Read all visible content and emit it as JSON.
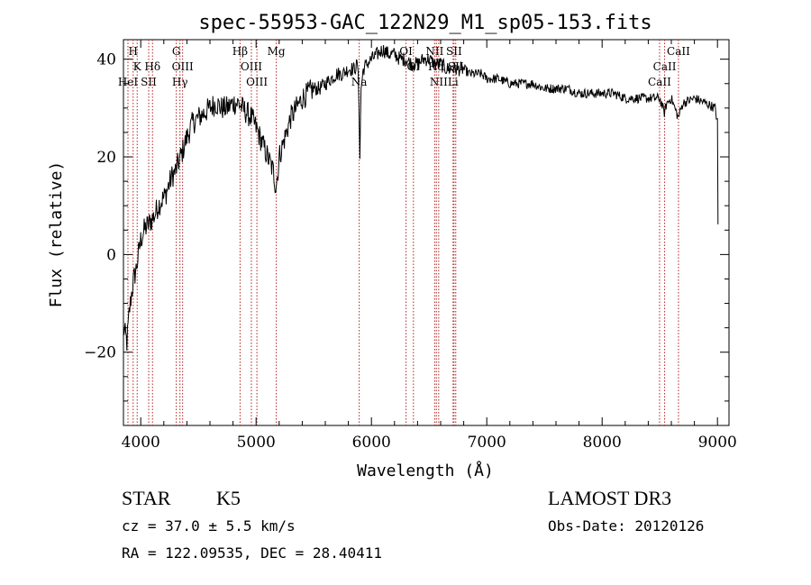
{
  "chart_data": {
    "type": "line",
    "title": "spec-55953-GAC_122N29_M1_sp05-153.fits",
    "xlabel": "Wavelength (Å)",
    "ylabel": "Flux (relative)",
    "xlim": [
      3850,
      9100
    ],
    "ylim": [
      -35,
      44
    ],
    "x_ticks": [
      4000,
      5000,
      6000,
      7000,
      8000,
      9000
    ],
    "y_ticks": [
      -20,
      0,
      20,
      40
    ],
    "x_tick_labels": [
      "4000",
      "5000",
      "6000",
      "7000",
      "8000",
      "9000"
    ],
    "y_tick_labels": [
      "−20",
      "0",
      "20",
      "40"
    ],
    "line_color": "#000000",
    "marker_color": "#b22222",
    "series": [
      {
        "name": "spectrum",
        "x": [
          3850,
          3880,
          3900,
          3920,
          3940,
          3960,
          3980,
          4000,
          4030,
          4060,
          4090,
          4120,
          4150,
          4180,
          4210,
          4240,
          4270,
          4300,
          4330,
          4360,
          4400,
          4450,
          4500,
          4550,
          4600,
          4650,
          4700,
          4750,
          4800,
          4850,
          4880,
          4920,
          4960,
          5000,
          5050,
          5100,
          5150,
          5170,
          5185,
          5200,
          5250,
          5300,
          5350,
          5400,
          5450,
          5500,
          5550,
          5600,
          5650,
          5700,
          5750,
          5800,
          5850,
          5880,
          5890,
          5900,
          5910,
          5930,
          5960,
          6000,
          6050,
          6100,
          6150,
          6200,
          6250,
          6300,
          6350,
          6400,
          6450,
          6500,
          6550,
          6600,
          6650,
          6700,
          6750,
          6800,
          6850,
          6900,
          6950,
          7000,
          7100,
          7200,
          7300,
          7400,
          7500,
          7600,
          7700,
          7800,
          7900,
          8000,
          8100,
          8200,
          8300,
          8400,
          8500,
          8540,
          8560,
          8600,
          8660,
          8700,
          8800,
          8900,
          8980,
          9000,
          9005
        ],
        "y": [
          -15,
          -18,
          -12,
          -8,
          -5,
          -3,
          0,
          3,
          5,
          6,
          7,
          8,
          10,
          11,
          12,
          14,
          16,
          17,
          19,
          21,
          24,
          27,
          28,
          29,
          30,
          31,
          30,
          30,
          31,
          31,
          30,
          29,
          28,
          26,
          23,
          20,
          17,
          14,
          16,
          20,
          24,
          28,
          30,
          32,
          33,
          34,
          34,
          35,
          36,
          37,
          37,
          38,
          38,
          39,
          33,
          20,
          34,
          38,
          39,
          40,
          41,
          42,
          41,
          41,
          40,
          40,
          39,
          39,
          40,
          40,
          39,
          39,
          38,
          38,
          38,
          38,
          37,
          37,
          37,
          36,
          36,
          35,
          35,
          35,
          34,
          34,
          34,
          33,
          33,
          33,
          33,
          32,
          32,
          32,
          32,
          29,
          31,
          32,
          28,
          31,
          32,
          31,
          30,
          27,
          6
        ]
      }
    ],
    "line_markers": [
      {
        "label": "H",
        "x": 3934,
        "row": 0
      },
      {
        "label": "K",
        "x": 3969,
        "row": 1
      },
      {
        "label": "HeI",
        "x": 3889,
        "row": 2
      },
      {
        "label": "SII",
        "x": 4069,
        "row": 2
      },
      {
        "label": "Hδ",
        "x": 4102,
        "row": 1
      },
      {
        "label": "G",
        "x": 4308,
        "row": 0
      },
      {
        "label": "OIII",
        "x": 4363,
        "row": 1
      },
      {
        "label": "Hγ",
        "x": 4340,
        "row": 2
      },
      {
        "label": "Hβ",
        "x": 4861,
        "row": 0
      },
      {
        "label": "OIII",
        "x": 4959,
        "row": 1
      },
      {
        "label": "OIII",
        "x": 5007,
        "row": 2
      },
      {
        "label": "Mg",
        "x": 5175,
        "row": 0
      },
      {
        "label": "Na",
        "x": 5894,
        "row": 2
      },
      {
        "label": "OI",
        "x": 6300,
        "row": 0
      },
      {
        "label": "OI",
        "x": 6364,
        "row": 1
      },
      {
        "label": "NII",
        "x": 6548,
        "row": 0
      },
      {
        "label": "Hα",
        "x": 6563,
        "row": 1
      },
      {
        "label": "NII",
        "x": 6583,
        "row": 2
      },
      {
        "label": "SII",
        "x": 6716,
        "row": 0
      },
      {
        "label": "SII",
        "x": 6731,
        "row": 1
      },
      {
        "label": "Li",
        "x": 6708,
        "row": 2
      },
      {
        "label": "CaII",
        "x": 8498,
        "row": 2
      },
      {
        "label": "CaII",
        "x": 8542,
        "row": 1
      },
      {
        "label": "CaII",
        "x": 8662,
        "row": 0
      }
    ]
  },
  "info": {
    "object_class": "STAR",
    "subclass": "K5",
    "survey": "LAMOST DR3",
    "redshift": "cz = 37.0 ± 5.5 km/s",
    "obs_date": "Obs-Date: 20120126",
    "coords": "RA = 122.09535, DEC =  28.40411"
  }
}
